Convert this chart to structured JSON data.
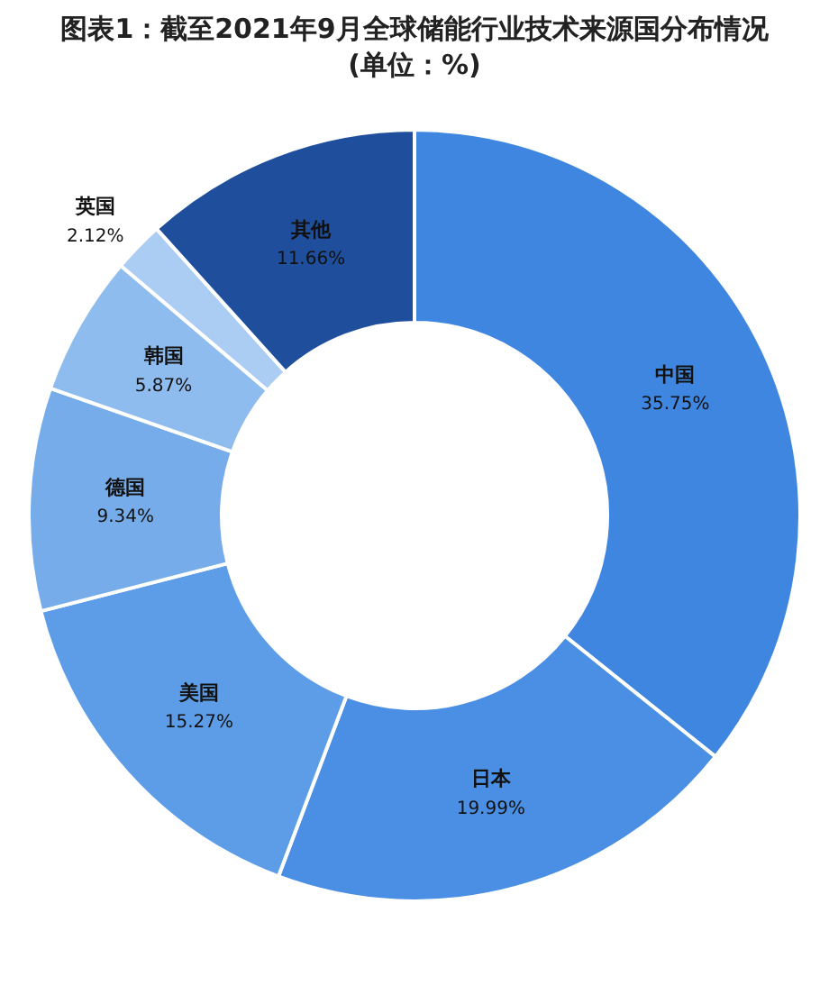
{
  "chart_data": {
    "type": "donut",
    "title": "图表1：截至2021年9月全球储能行业技术来源国分布情况",
    "subtitle": "(单位：%)",
    "categories": [
      "中国",
      "日本",
      "美国",
      "德国",
      "韩国",
      "英国",
      "其他"
    ],
    "values": [
      35.75,
      19.99,
      15.27,
      9.34,
      5.87,
      2.12,
      11.66
    ],
    "value_labels": [
      "35.75%",
      "19.99%",
      "15.27%",
      "9.34%",
      "5.87%",
      "2.12%",
      "11.66%"
    ],
    "colors": [
      "#3f86e0",
      "#4a8fe3",
      "#5d9de7",
      "#76acea",
      "#8fbcee",
      "#abcdf3",
      "#1f4f9c"
    ],
    "legend": false
  }
}
